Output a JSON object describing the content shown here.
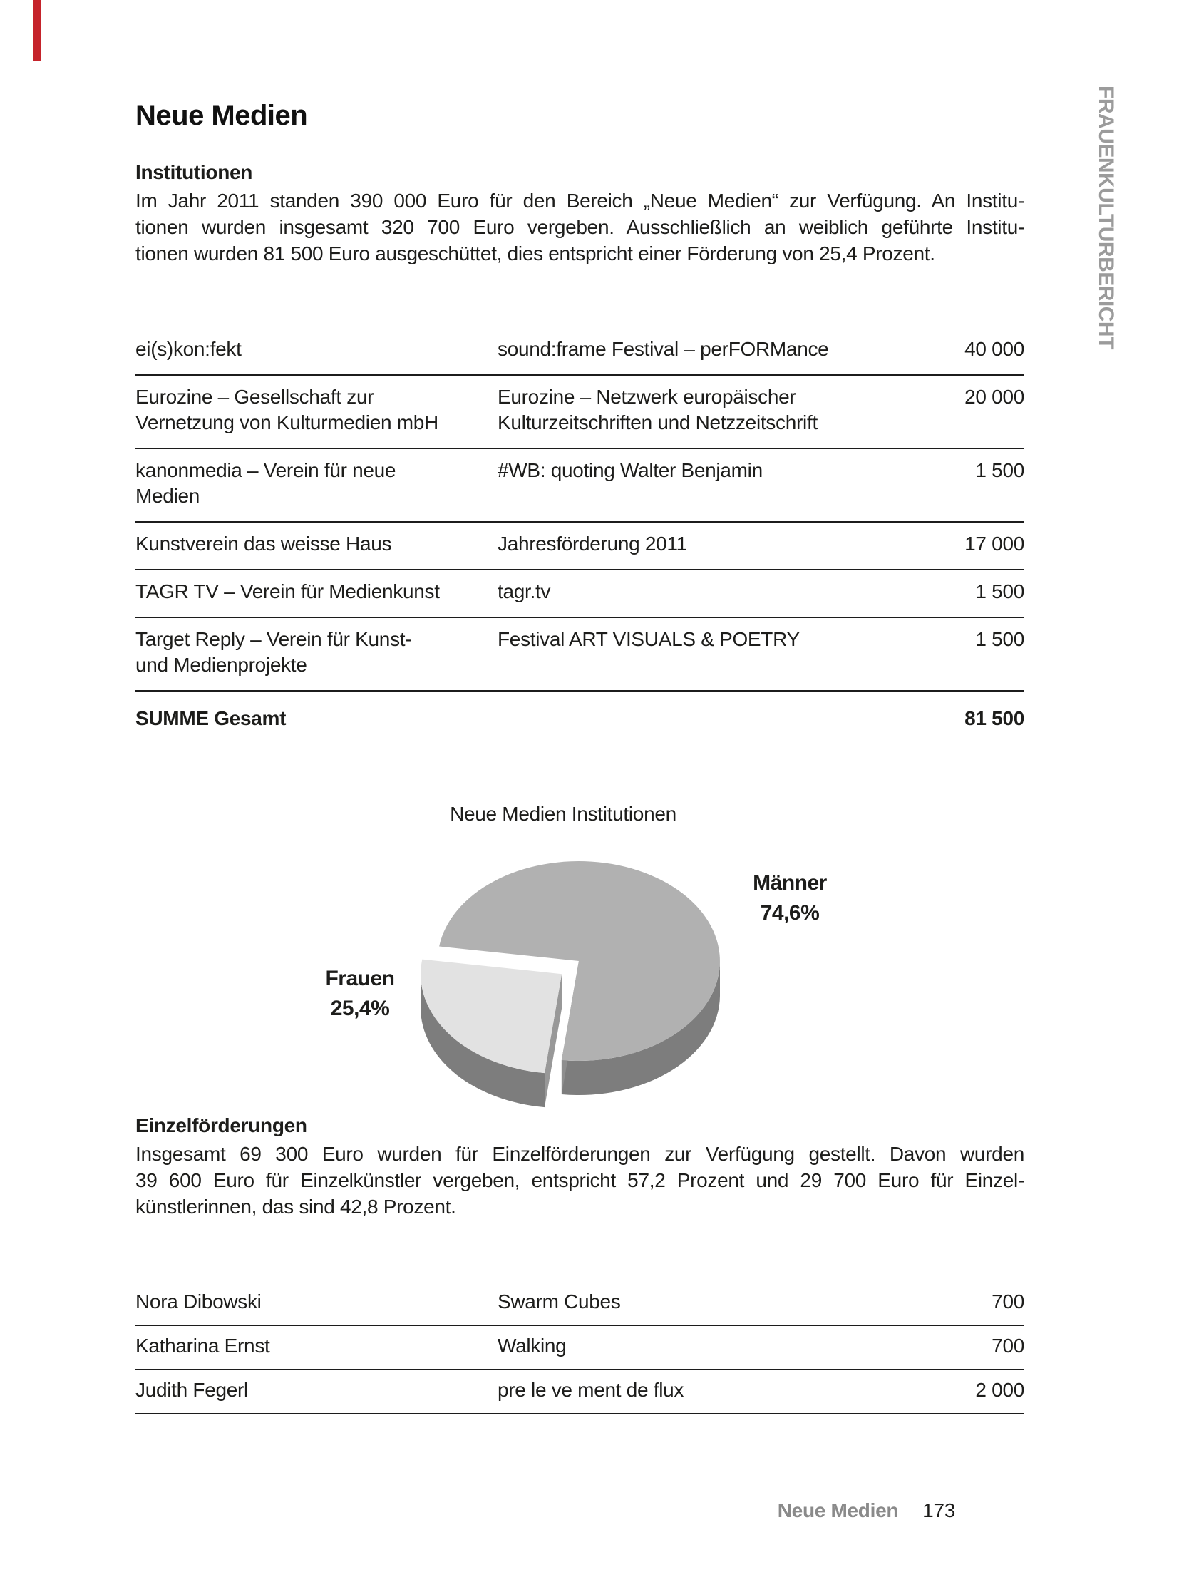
{
  "accent": {
    "red_bar_color": "#c5232b"
  },
  "sidebar": {
    "vertical_label": "FRAUENKULTURBERICHT"
  },
  "title": "Neue Medien",
  "institutionen": {
    "heading": "Institutionen",
    "paragraph_lines": [
      "Im Jahr 2011 standen 390 000 Euro für den Bereich „Neue Medien“ zur Verfügung. An Institu-",
      "tionen wurden insgesamt 320 700 Euro vergeben. Ausschließlich an weiblich geführte Institu-",
      "tionen wurden 81 500 Euro ausgeschüttet, dies entspricht einer Förderung von 25,4 Prozent."
    ],
    "table": {
      "rows": [
        {
          "institution": "ei(s)kon:fekt",
          "project": "sound:frame Festival – perFORMance",
          "amount": "40 000"
        },
        {
          "institution": "Eurozine – Gesellschaft zur\nVernetzung von Kulturmedien mbH",
          "project": "Eurozine – Netzwerk europäischer\nKulturzeitschriften und Netzzeitschrift",
          "amount": "20 000"
        },
        {
          "institution": "kanonmedia – Verein für neue\nMedien",
          "project": "#WB: quoting Walter Benjamin",
          "amount": "1 500"
        },
        {
          "institution": "Kunstverein das weisse Haus",
          "project": "Jahresförderung 2011",
          "amount": "17 000"
        },
        {
          "institution": "TAGR TV – Verein für Medienkunst",
          "project": "tagr.tv",
          "amount": "1 500"
        },
        {
          "institution": "Target Reply – Verein für Kunst-\nund Medienprojekte",
          "project": "Festival ART VISUALS & POETRY",
          "amount": "1 500"
        }
      ],
      "total_label": "SUMME Gesamt",
      "total_amount": "81 500"
    }
  },
  "chart_data": {
    "type": "pie",
    "title": "Neue Medien Institutionen",
    "style": "3d-exploded",
    "slices": [
      {
        "label": "Männer",
        "value": 74.6,
        "display": "74,6%",
        "color": "#b1b1b1",
        "exploded": false
      },
      {
        "label": "Frauen",
        "value": 25.4,
        "display": "25,4%",
        "color": "#e2e2e2",
        "exploded": true
      }
    ],
    "side_color": "#7d7d7d",
    "cut_color": "#8e8e8e"
  },
  "einzelfoerderungen": {
    "heading": "Einzelförderungen",
    "paragraph_lines": [
      "Insgesamt 69 300 Euro wurden für Einzelförderungen zur Verfügung gestellt. Davon wurden",
      "39 600 Euro für Einzelkünstler vergeben, entspricht 57,2 Prozent und 29 700 Euro für Einzel-",
      "künstlerinnen, das sind 42,8 Prozent."
    ],
    "table": {
      "rows": [
        {
          "person": "Nora Dibowski",
          "project": "Swarm Cubes",
          "amount": "700"
        },
        {
          "person": "Katharina Ernst",
          "project": "Walking",
          "amount": "700"
        },
        {
          "person": "Judith Fegerl",
          "project": "pre le ve ment de flux",
          "amount": "2 000"
        }
      ]
    }
  },
  "footer": {
    "section_label": "Neue Medien",
    "page_number": "173"
  }
}
